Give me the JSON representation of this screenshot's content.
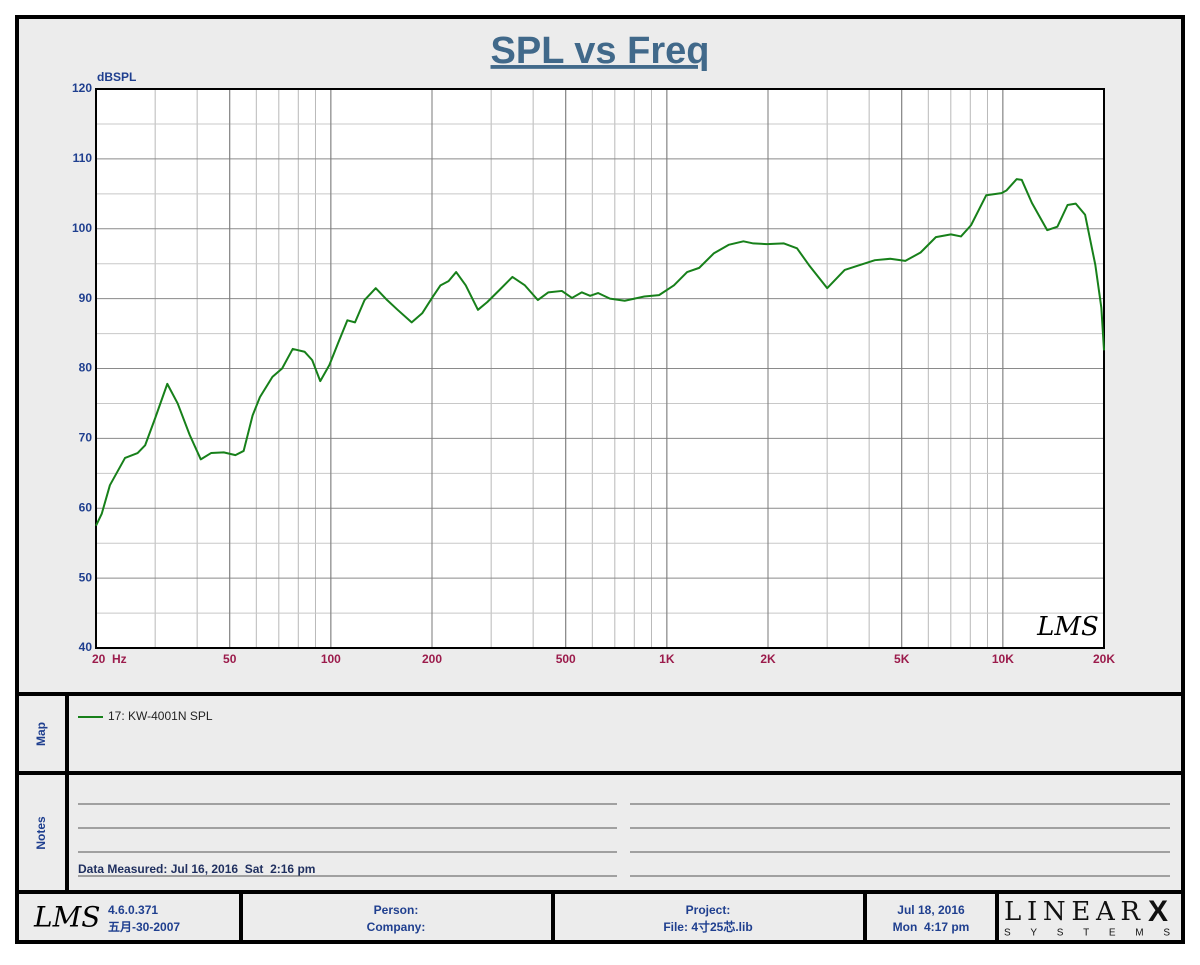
{
  "chart_data": {
    "type": "line",
    "title": "SPL vs Freq",
    "y_label": "dBSPL",
    "x_scale": "log",
    "grid": true,
    "xlim": [
      20,
      20000
    ],
    "ylim": [
      40,
      120
    ],
    "xticks": [
      {
        "value": 20,
        "label": "20  Hz"
      },
      50,
      100,
      200,
      500,
      {
        "value": 1000,
        "label": "1K"
      },
      {
        "value": 2000,
        "label": "2K"
      },
      {
        "value": 5000,
        "label": "5K"
      },
      {
        "value": 10000,
        "label": "10K"
      },
      {
        "value": 20000,
        "label": "20K"
      }
    ],
    "yticks": [
      40,
      50,
      60,
      70,
      80,
      90,
      100,
      110,
      120
    ],
    "x": [
      20,
      20.8,
      22,
      24.4,
      26.6,
      28,
      30,
      32.6,
      35,
      38,
      41,
      44,
      48,
      52,
      55,
      58.5,
      61.5,
      67,
      71.6,
      77,
      83.5,
      88,
      93,
      99,
      105,
      112,
      118,
      126,
      136,
      147,
      158,
      174,
      187,
      200,
      212,
      224,
      236,
      252,
      274,
      292,
      317,
      347,
      378,
      413,
      444,
      487,
      522,
      558,
      591,
      624,
      677,
      749,
      857,
      948,
      1050,
      1149,
      1248,
      1381,
      1527,
      1690,
      1808,
      1984,
      2230,
      2440,
      2648,
      3000,
      3383,
      3750,
      4160,
      4620,
      5125,
      5690,
      6320,
      7005,
      7505,
      8040,
      8925,
      9910,
      10260,
      10990,
      11380,
      12200,
      13550,
      14530,
      15580,
      16480,
      17570,
      18850,
      19640,
      20000
    ],
    "series": [
      {
        "name": "17: KW-4001N SPL",
        "color": "#17801a",
        "values": [
          57.5,
          59.2,
          63.3,
          67.2,
          67.9,
          69,
          72.9,
          77.8,
          75,
          70.5,
          67,
          67.9,
          68,
          67.6,
          68.2,
          73.3,
          75.9,
          78.8,
          80,
          82.8,
          82.4,
          81.2,
          78.2,
          80.5,
          83.6,
          86.9,
          86.6,
          89.8,
          91.5,
          89.8,
          88.4,
          86.6,
          87.9,
          90.1,
          91.9,
          92.5,
          93.8,
          91.9,
          88.4,
          89.5,
          91.2,
          93.1,
          91.9,
          89.8,
          90.9,
          91.1,
          90.1,
          90.9,
          90.4,
          90.8,
          90,
          89.7,
          90.3,
          90.5,
          91.9,
          93.8,
          94.4,
          96.5,
          97.7,
          98.2,
          97.9,
          97.8,
          97.9,
          97.2,
          94.8,
          91.5,
          94.1,
          94.8,
          95.5,
          95.7,
          95.4,
          96.6,
          98.8,
          99.2,
          98.9,
          100.5,
          104.8,
          105.1,
          105.5,
          107.1,
          107,
          103.7,
          99.8,
          100.3,
          103.4,
          103.6,
          102,
          94.8,
          88.7,
          82.6
        ]
      }
    ]
  },
  "watermark": "LMS",
  "map_label": "Map",
  "notes_label": "Notes",
  "data_measured": "Data Measured: Jul 16, 2016  Sat  2:16 pm",
  "footer": {
    "logo": "LMS",
    "version": "4.6.0.371",
    "build_date": "五月-30-2007",
    "person": "Person:",
    "company": "Company:",
    "project": "Project:",
    "file": "File: 4寸25芯.lib",
    "date": "Jul 18, 2016",
    "time": "Mon  4:17 pm",
    "brand": "LINEAR",
    "brand_x": "X",
    "brand_sub": "SYSTEMS"
  }
}
